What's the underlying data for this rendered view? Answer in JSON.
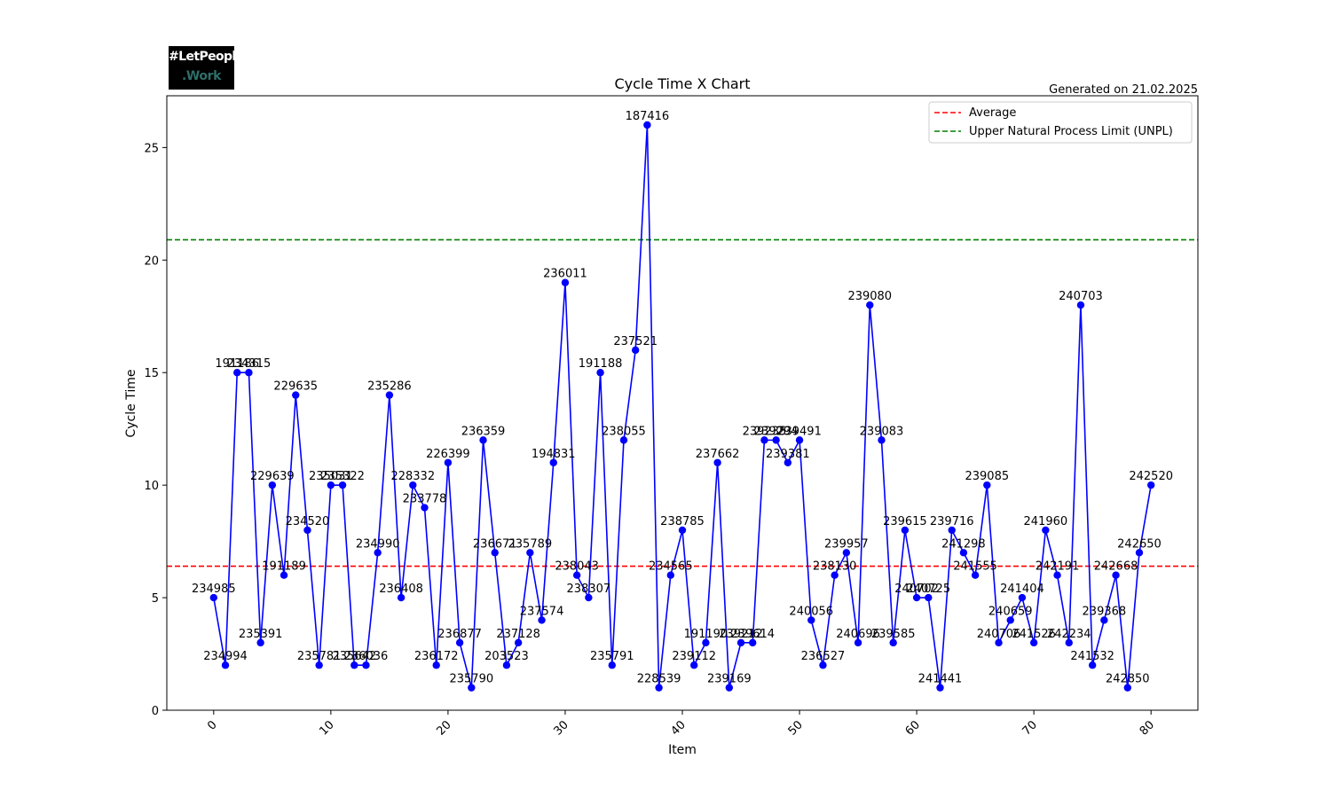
{
  "logo": {
    "line1": "#LetPeople",
    "line2": ".Work"
  },
  "chart_data": {
    "type": "line",
    "title": "Cycle Time X Chart",
    "subtitle": "Generated on 21.02.2025",
    "xlabel": "Item",
    "ylabel": "Cycle Time",
    "xlim": [
      -4,
      84
    ],
    "ylim": [
      0,
      27.3
    ],
    "xticks": [
      0,
      10,
      20,
      30,
      40,
      50,
      60,
      70,
      80
    ],
    "yticks": [
      0,
      5,
      10,
      15,
      20,
      25
    ],
    "grid": false,
    "legend_position": "top-right",
    "series": [
      {
        "color": "#0000ff",
        "x": [
          0,
          1,
          2,
          3,
          4,
          5,
          6,
          7,
          8,
          9,
          10,
          11,
          12,
          13,
          14,
          15,
          16,
          17,
          18,
          19,
          20,
          21,
          22,
          23,
          24,
          25,
          26,
          27,
          28,
          29,
          30,
          31,
          32,
          33,
          34,
          35,
          36,
          37,
          38,
          39,
          40,
          41,
          42,
          43,
          44,
          45,
          46,
          47,
          48,
          49,
          50,
          51,
          52,
          53,
          54,
          55,
          56,
          57,
          58,
          59,
          60,
          61,
          62,
          63,
          64,
          65,
          66,
          67,
          68,
          69,
          70,
          71,
          72,
          73,
          74,
          75,
          76,
          77,
          78,
          79,
          80
        ],
        "values": [
          5,
          2,
          15,
          15,
          3,
          10,
          6,
          14,
          8,
          2,
          10,
          10,
          2,
          2,
          7,
          14,
          5,
          10,
          9,
          2,
          11,
          3,
          1,
          12,
          7,
          2,
          3,
          7,
          4,
          11,
          19,
          6,
          5,
          15,
          2,
          12,
          16,
          26,
          1,
          6,
          8,
          2,
          3,
          11,
          1,
          3,
          3,
          12,
          12,
          11,
          12,
          4,
          2,
          6,
          7,
          3,
          18,
          12,
          3,
          8,
          5,
          5,
          1,
          8,
          7,
          6,
          10,
          3,
          4,
          5,
          3,
          8,
          6,
          3,
          18,
          2,
          4,
          6,
          1,
          7,
          10
        ],
        "point_labels": [
          "234985",
          "234994",
          "191186",
          "234315",
          "235391",
          "229639",
          "191189",
          "229635",
          "234520",
          "235781",
          "235031",
          "235322",
          "235642",
          "236036",
          "234990",
          "235286",
          "236408",
          "228332",
          "233778",
          "236172",
          "226399",
          "236877",
          "235790",
          "236359",
          "236671",
          "203523",
          "237128",
          "235789",
          "237574",
          "194831",
          "236011",
          "238043",
          "238307",
          "191188",
          "235791",
          "238055",
          "237521",
          "187416",
          "228539",
          "234565",
          "238785",
          "239112",
          "191190",
          "237662",
          "239169",
          "239212",
          "239614",
          "239235",
          "239294",
          "239381",
          "239491",
          "240056",
          "236527",
          "238130",
          "239957",
          "240696",
          "239080",
          "239083",
          "239585",
          "239615",
          "240702",
          "240725",
          "241441",
          "239716",
          "241298",
          "241555",
          "239085",
          "240706",
          "240659",
          "241404",
          "241526",
          "241960",
          "242191",
          "242234",
          "240703",
          "241532",
          "239368",
          "242668",
          "242850",
          "242650",
          "242520"
        ]
      }
    ],
    "reference_lines": [
      {
        "name": "Average",
        "y": 6.4,
        "color": "#ff0000",
        "style": "dashed"
      },
      {
        "name": "Upper Natural Process Limit (UNPL)",
        "y": 20.9,
        "color": "#008000",
        "style": "dashed"
      }
    ]
  }
}
